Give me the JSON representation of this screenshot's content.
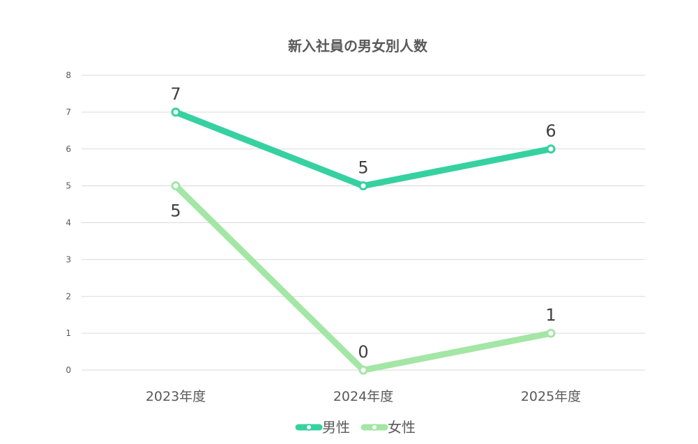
{
  "chart_data": {
    "type": "line",
    "title": "新入社員の男女別人数",
    "categories": [
      "2023年度",
      "2024年度",
      "2025年度"
    ],
    "series": [
      {
        "name": "男性",
        "values": [
          7,
          5,
          6
        ],
        "color": "#36D1A0"
      },
      {
        "name": "女性",
        "values": [
          5,
          0,
          1
        ],
        "color": "#A3E6A5"
      }
    ],
    "ylim": [
      0,
      8
    ],
    "yticks": [
      0,
      1,
      2,
      3,
      4,
      5,
      6,
      7,
      8
    ],
    "grid": true,
    "data_labels": true,
    "legend": "bottom",
    "xlabel": "",
    "ylabel": ""
  }
}
